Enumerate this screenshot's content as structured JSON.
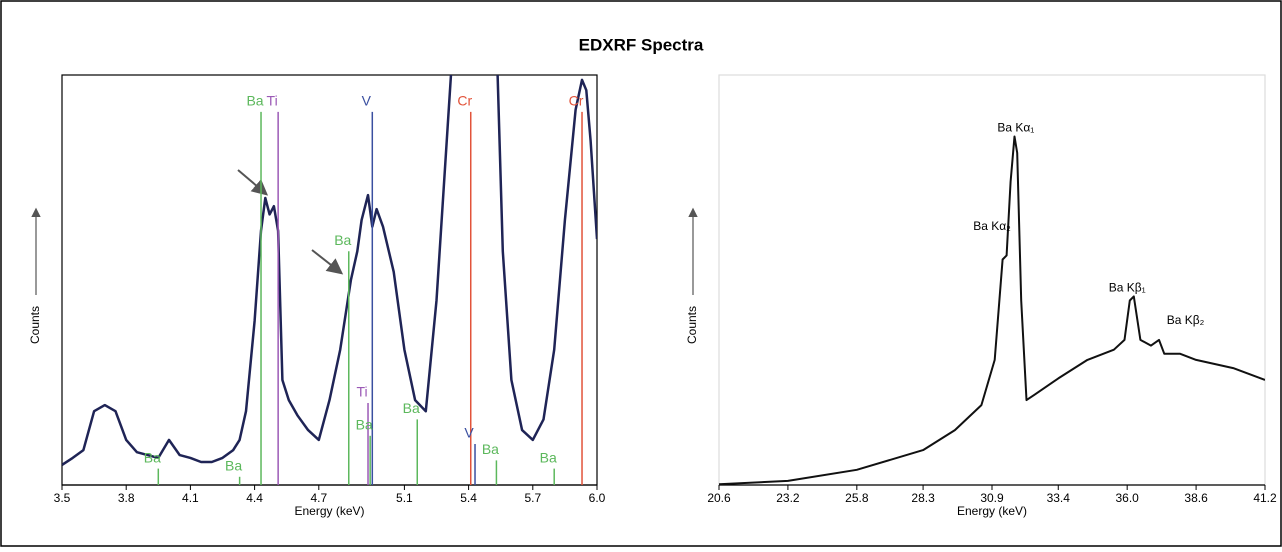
{
  "title": "EDXRF Spectra",
  "chart_data": [
    {
      "type": "line",
      "xlabel": "Energy (keV)",
      "ylabel": "Counts",
      "xlim": [
        3.5,
        6.0
      ],
      "ylim": [
        0,
        100
      ],
      "xticks": [
        3.5,
        3.8,
        4.1,
        4.4,
        4.7,
        5.1,
        5.4,
        5.7,
        {
          "value": 6,
          "label": "6.0"
        }
      ],
      "x": [
        3.5,
        3.55,
        3.6,
        3.65,
        3.7,
        3.75,
        3.8,
        3.85,
        3.9,
        3.95,
        4.0,
        4.05,
        4.1,
        4.15,
        4.2,
        4.25,
        4.3,
        4.33,
        4.36,
        4.4,
        4.43,
        4.45,
        4.47,
        4.49,
        4.51,
        4.53,
        4.56,
        4.6,
        4.65,
        4.7,
        4.75,
        4.8,
        4.85,
        4.88,
        4.9,
        4.93,
        4.95,
        4.97,
        5.0,
        5.05,
        5.1,
        5.15,
        5.2,
        5.25,
        5.33,
        5.53,
        5.56,
        5.6,
        5.65,
        5.7,
        5.75,
        5.8,
        5.85,
        5.9,
        5.93,
        5.95,
        5.97,
        6.0
      ],
      "series": [
        {
          "color": "#1f2456",
          "values": [
            4.9,
            6.6,
            8.5,
            18,
            19.5,
            18,
            11,
            8,
            7.3,
            6.6,
            11,
            7.3,
            6.6,
            5.6,
            5.6,
            6.6,
            8.5,
            11,
            18,
            40,
            62,
            70,
            66,
            68,
            62,
            25.6,
            20.7,
            17,
            13.4,
            11,
            20.7,
            33,
            50,
            57,
            64.6,
            70.7,
            63,
            67.3,
            63,
            52,
            33,
            20.7,
            18,
            45,
            110,
            110,
            57,
            25.6,
            13.4,
            11,
            16,
            33,
            64.6,
            91.5,
            98.8,
            96.3,
            84,
            60
          ]
        }
      ],
      "annotations": [
        {
          "label": "Ba",
          "x": 4.43,
          "top": 91,
          "color": "#5cb85c"
        },
        {
          "label": "Ti",
          "x": 4.51,
          "top": 91,
          "color": "#9b59b6"
        },
        {
          "label": "V",
          "x": 4.95,
          "top": 91,
          "color": "#3a4fa0"
        },
        {
          "label": "Cr",
          "x": 5.41,
          "top": 91,
          "color": "#e2533a"
        },
        {
          "label": "Cr",
          "x": 5.93,
          "top": 91,
          "color": "#e2533a"
        },
        {
          "label": "Ba",
          "x": 4.84,
          "top": 57,
          "color": "#5cb85c"
        },
        {
          "label": "Ti",
          "x": 4.93,
          "top": 20,
          "color": "#9b59b6"
        },
        {
          "label": "Ba",
          "x": 4.94,
          "top": 12,
          "color": "#5cb85c"
        },
        {
          "label": "Ba",
          "x": 5.16,
          "top": 16,
          "color": "#5cb85c"
        },
        {
          "label": "V",
          "x": 5.43,
          "top": 10,
          "color": "#3a4fa0"
        },
        {
          "label": "Ba",
          "x": 5.53,
          "top": 6,
          "color": "#5cb85c"
        },
        {
          "label": "Ba",
          "x": 5.8,
          "top": 4,
          "color": "#5cb85c"
        },
        {
          "label": "Ba",
          "x": 3.95,
          "top": 4,
          "color": "#5cb85c"
        },
        {
          "label": "Ba",
          "x": 4.33,
          "top": 2,
          "color": "#5cb85c"
        }
      ]
    },
    {
      "type": "line",
      "xlabel": "Energy (keV)",
      "ylabel": "Counts",
      "xlim": [
        20.6,
        41.2
      ],
      "ylim": [
        0,
        100
      ],
      "xticks": [
        20.6,
        23.2,
        25.8,
        28.3,
        30.9,
        33.4,
        {
          "value": 36,
          "label": "36.0"
        },
        38.6,
        41.2
      ],
      "x": [
        20.6,
        23.2,
        25.8,
        28.3,
        29.5,
        30.5,
        31.0,
        31.3,
        31.45,
        31.6,
        31.75,
        31.85,
        32.0,
        32.2,
        32.5,
        33.4,
        34.5,
        35.5,
        35.9,
        36.1,
        36.25,
        36.5,
        36.9,
        37.2,
        37.4,
        38.0,
        38.6,
        40.0,
        41.2
      ],
      "series": [
        {
          "color": "#111111",
          "values": [
            0.2,
            1,
            3.7,
            8.5,
            13.4,
            19.5,
            30.5,
            55,
            56,
            74,
            85,
            81,
            45,
            20.7,
            22,
            26,
            30.5,
            33,
            35.4,
            45,
            46,
            35.4,
            34,
            35.4,
            32,
            32,
            30.5,
            28.5,
            25.6
          ]
        }
      ],
      "annotations": [
        {
          "label": "Ba Kα₁",
          "x": 31.8,
          "top": 87
        },
        {
          "label": "Ba Kα₂",
          "x": 30.9,
          "top": 63
        },
        {
          "label": "Ba Kβ₁",
          "x": 36.0,
          "top": 48
        },
        {
          "label": "Ba Kβ₂",
          "x": 38.2,
          "top": 40
        }
      ]
    }
  ]
}
